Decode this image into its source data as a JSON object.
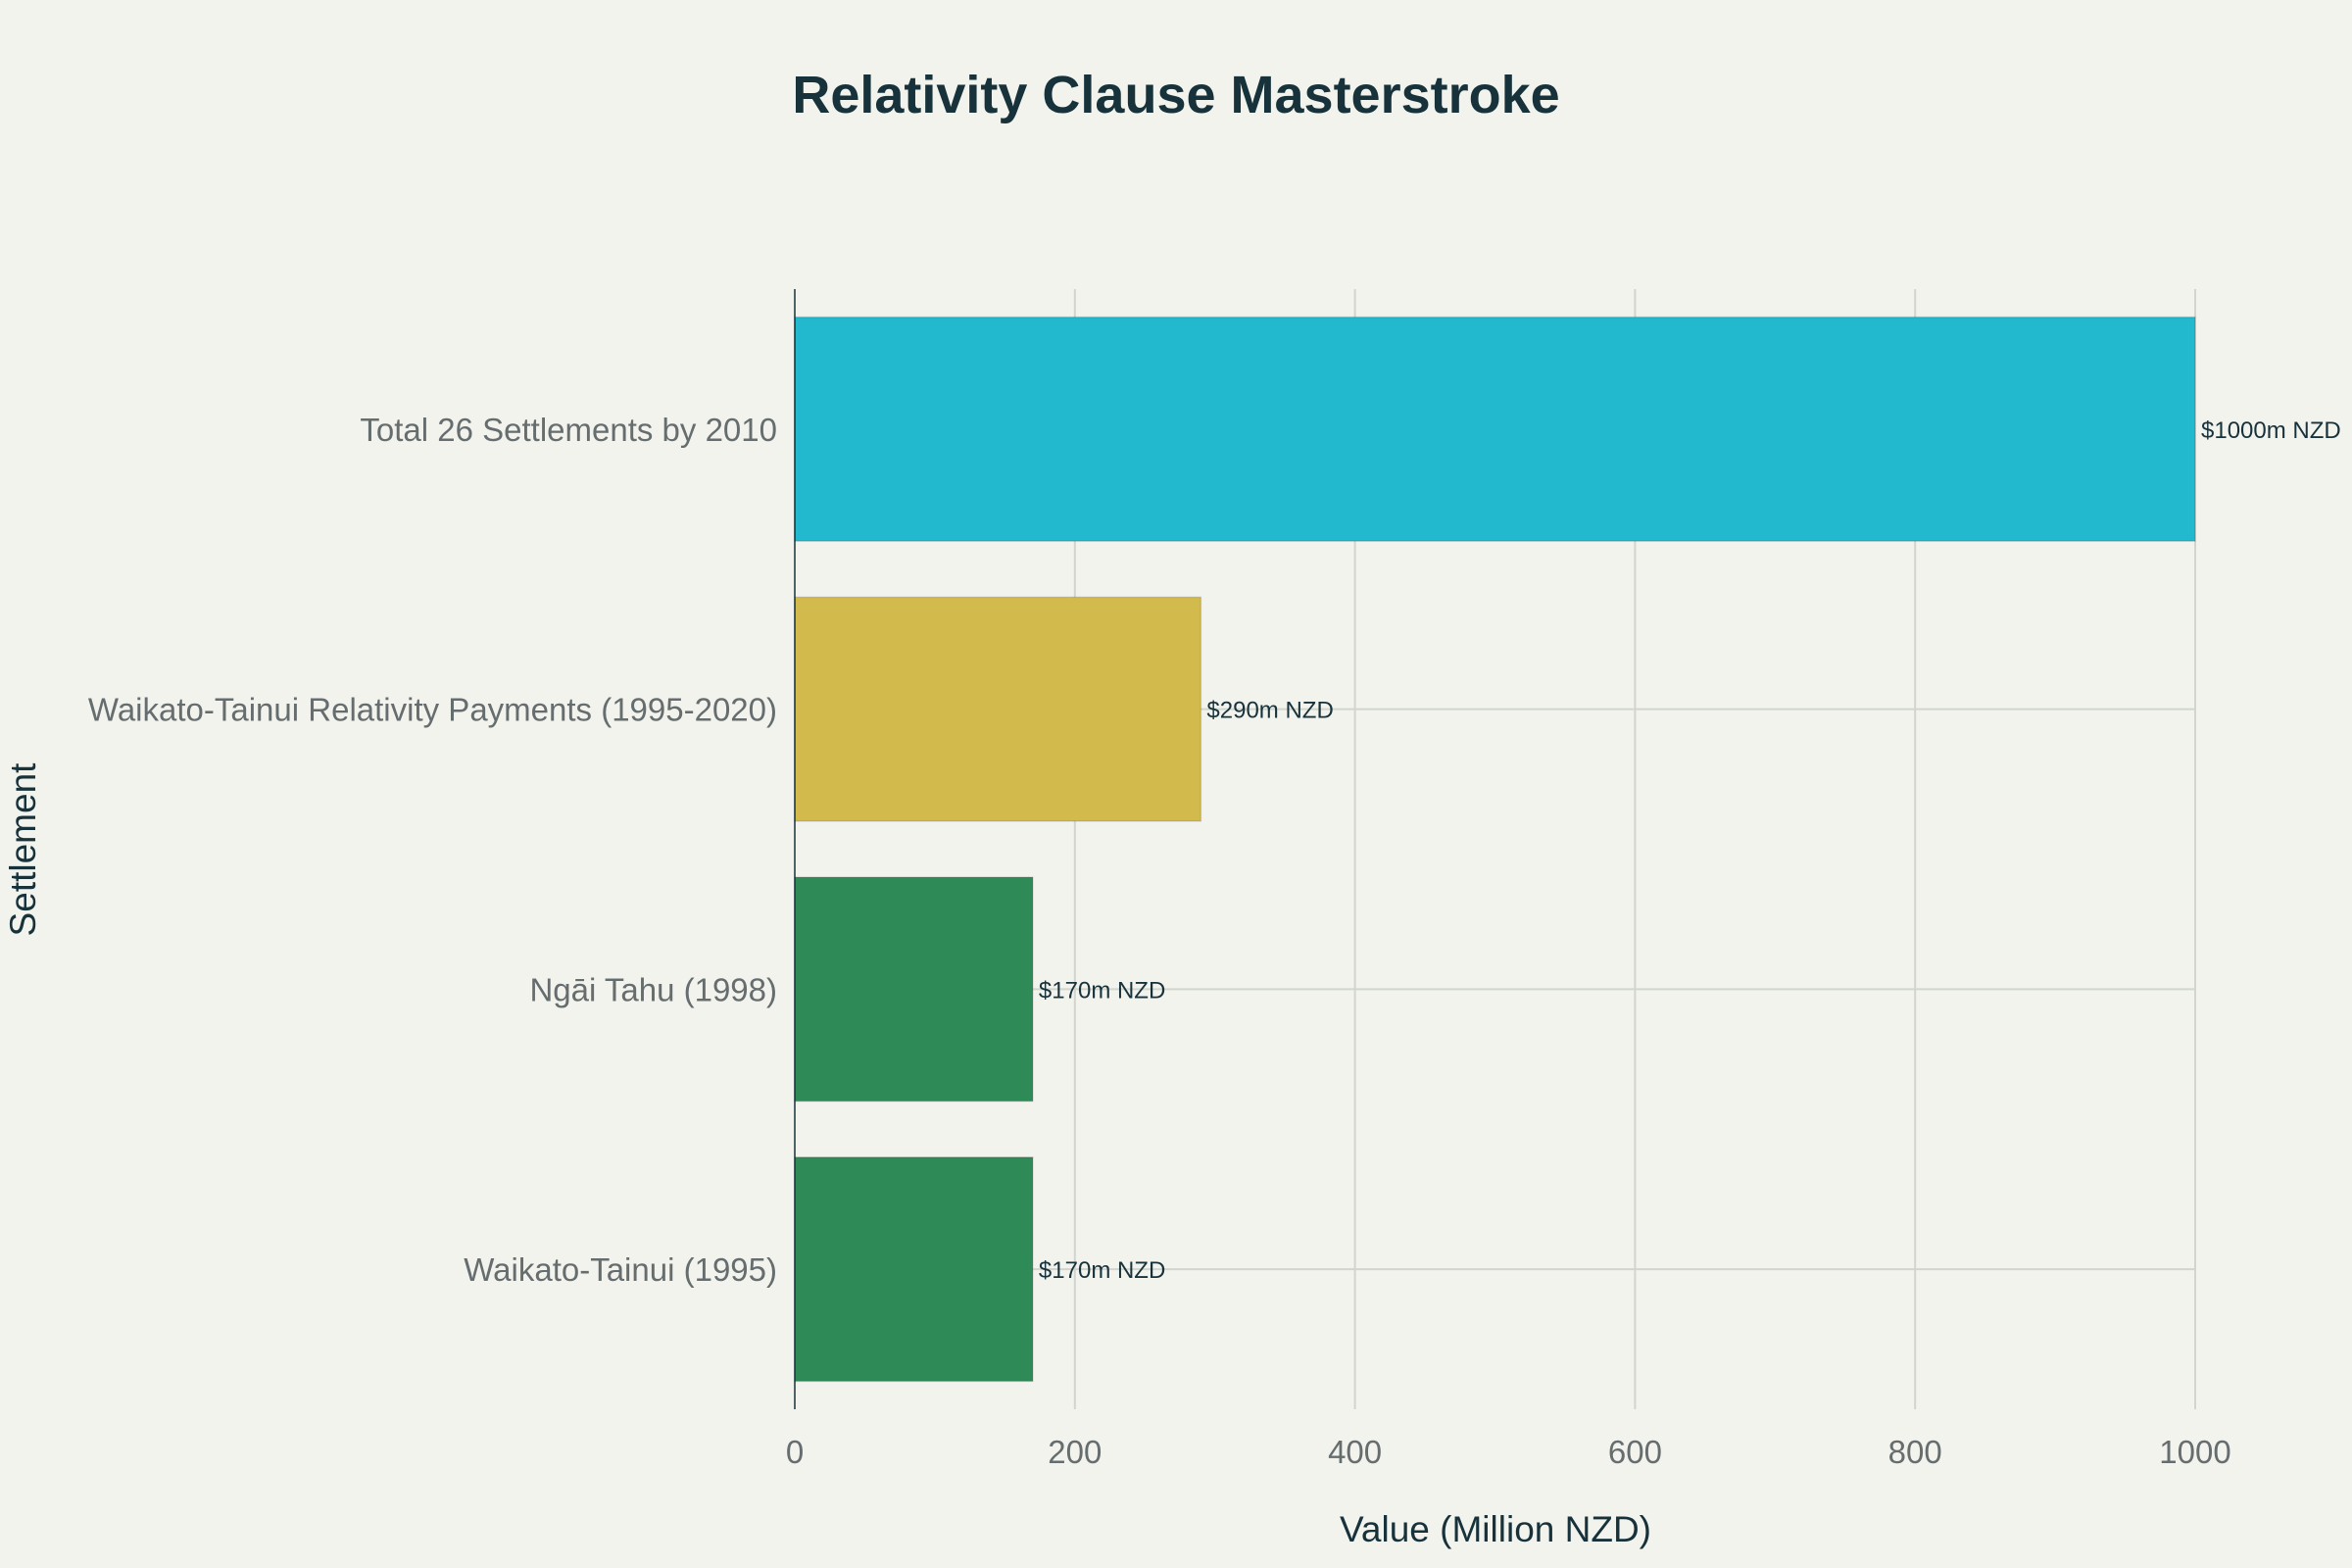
{
  "chart_data": {
    "type": "bar",
    "orientation": "horizontal",
    "title": "Relativity Clause Masterstroke",
    "xlabel": "Value (Million NZD)",
    "ylabel": "Settlement",
    "xlim": [
      0,
      1000
    ],
    "xticks": [
      "0",
      "200",
      "400",
      "600",
      "800",
      "1000"
    ],
    "categories": [
      "Total 26 Settlements by 2010",
      "Waikato-Tainui Relativity Payments (1995-2020)",
      "Ngāi Tahu (1998)",
      "Waikato-Tainui (1995)"
    ],
    "values": [
      1000,
      290,
      170,
      170
    ],
    "data_labels": [
      "$1000m NZD",
      "$290m NZD",
      "$170m NZD",
      "$170m NZD"
    ],
    "bar_colors": [
      "#22b8cd",
      "#d2ba4c",
      "#2e8b57",
      "#2e8b57"
    ],
    "grid": true,
    "legend": "none"
  }
}
